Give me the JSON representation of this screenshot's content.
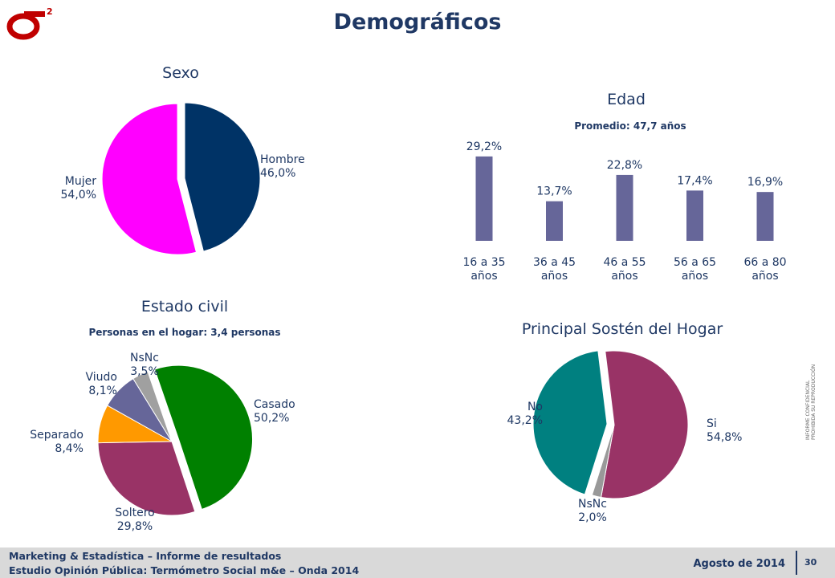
{
  "header": {
    "logo_symbol": "σ",
    "logo_superscript": "2",
    "title": "Demográficos"
  },
  "colors": {
    "brand": "#c00000",
    "title": "#1f3864"
  },
  "chart_data": [
    {
      "type": "pie",
      "title": "Sexo",
      "slices": [
        {
          "label": "Hombre",
          "value": 46.0,
          "value_label": "46,0%",
          "color": "#003366"
        },
        {
          "label": "Mujer",
          "value": 54.0,
          "value_label": "54,0%",
          "color": "#ff00ff"
        }
      ],
      "exploded": [
        "Mujer"
      ]
    },
    {
      "type": "bar",
      "title": "Edad",
      "subtitle": "Promedio: 47,7 años",
      "categories": [
        "16 a 35 años",
        "36 a 45 años",
        "46 a 55 años",
        "56 a 65 años",
        "66 a 80 años"
      ],
      "values": [
        29.2,
        13.7,
        22.8,
        17.4,
        16.9
      ],
      "value_labels": [
        "29,2%",
        "13,7%",
        "22,8%",
        "17,4%",
        "16,9%"
      ],
      "color": "#666699"
    },
    {
      "type": "pie",
      "title": "Estado civil",
      "subtitle": "Personas en el hogar: 3,4 personas",
      "slices": [
        {
          "label": "Casado",
          "value": 50.2,
          "value_label": "50,2%",
          "color": "#008000"
        },
        {
          "label": "Soltero",
          "value": 29.8,
          "value_label": "29,8%",
          "color": "#993366"
        },
        {
          "label": "Separado",
          "value": 8.4,
          "value_label": "8,4%",
          "color": "#ff9900"
        },
        {
          "label": "Viudo",
          "value": 8.1,
          "value_label": "8,1%",
          "color": "#666699"
        },
        {
          "label": "NsNc",
          "value": 3.5,
          "value_label": "3,5%",
          "color": "#a0a0a0"
        }
      ],
      "exploded": [
        "Casado"
      ]
    },
    {
      "type": "pie",
      "title": "Principal Sostén del Hogar",
      "slices": [
        {
          "label": "Si",
          "value": 54.8,
          "value_label": "54,8%",
          "color": "#993366"
        },
        {
          "label": "NsNc",
          "value": 2.0,
          "value_label": "2,0%",
          "color": "#999999"
        },
        {
          "label": "No",
          "value": 43.2,
          "value_label": "43,2%",
          "color": "#008080"
        }
      ],
      "exploded": [
        "No"
      ]
    }
  ],
  "side_note": [
    "INFORME CONFIDENCIAL",
    "PROHIBIDA SU REPRODUCCIÓN"
  ],
  "footer": {
    "line1": "Marketing & Estadística – Informe de resultados",
    "line2": "Estudio Opinión Pública: Termómetro Social m&e – Onda 2014",
    "date": "Agosto de 2014",
    "page": "30"
  }
}
